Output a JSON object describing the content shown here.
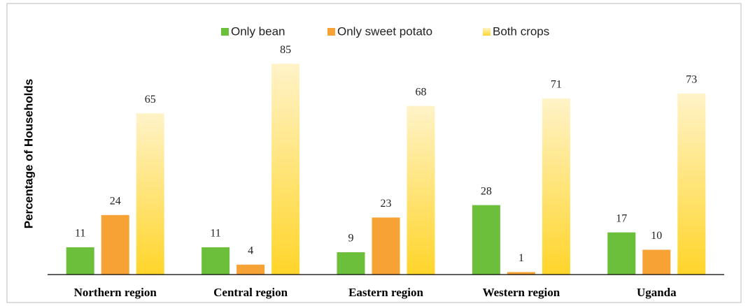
{
  "chart_data": {
    "type": "bar",
    "y_label": "Percentage of Households",
    "categories": [
      "Northern region",
      "Central region",
      "Eastern region",
      "Western region",
      "Uganda"
    ],
    "series": [
      {
        "name": "Only bean",
        "color": "#6cbf3a",
        "values": [
          11,
          11,
          9,
          28,
          17
        ]
      },
      {
        "name": "Only sweet potato",
        "color": "#f7a234",
        "values": [
          24,
          4,
          23,
          1,
          10
        ]
      },
      {
        "name": "Both crops",
        "color": "#ffd52a",
        "top_color": "#fff3c8",
        "values": [
          65,
          85,
          68,
          71,
          73
        ]
      }
    ],
    "ylim": [
      0,
      100
    ],
    "legend": "top"
  }
}
